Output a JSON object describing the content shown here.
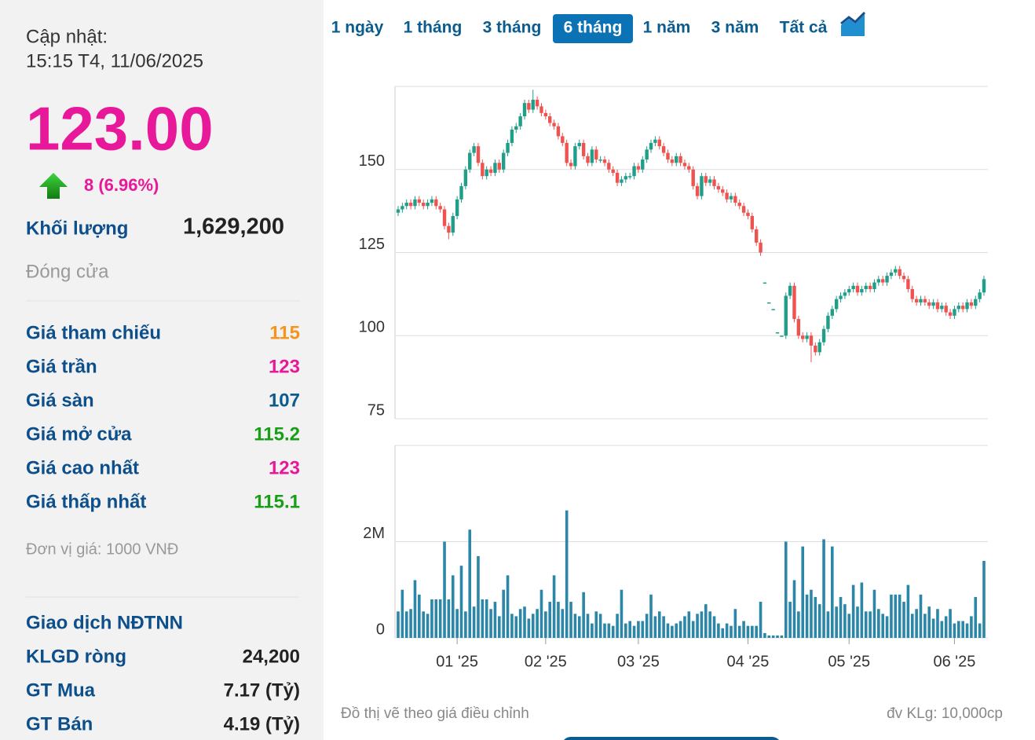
{
  "sidebar": {
    "update_label": "Cập nhật:",
    "update_time": "15:15 T4, 11/06/2025",
    "price": "123.00",
    "price_color": "#e8189a",
    "change": "8 (6.96%)",
    "volume_label": "Khối lượng",
    "volume": "1,629,200",
    "status": "Đóng cửa",
    "stats": [
      {
        "label": "Giá tham chiếu",
        "value": "115",
        "color": "#f7941d"
      },
      {
        "label": "Giá trần",
        "value": "123",
        "color": "#e8189a"
      },
      {
        "label": "Giá sàn",
        "value": "107",
        "color": "#0b5c8e"
      },
      {
        "label": "Giá mở cửa",
        "value": "115.2",
        "color": "#1a9e1a"
      },
      {
        "label": "Giá cao nhất",
        "value": "123",
        "color": "#e8189a"
      },
      {
        "label": "Giá thấp nhất",
        "value": "115.1",
        "color": "#1a9e1a"
      }
    ],
    "unit_note": "Đơn vị giá: 1000 VNĐ",
    "foreign": {
      "title": "Giao dịch NĐTNN",
      "rows": [
        {
          "label": "KLGD ròng",
          "value": "24,200"
        },
        {
          "label": "GT Mua",
          "value": "7.17 (Tỷ)"
        },
        {
          "label": "GT Bán",
          "value": "4.19 (Tỷ)"
        }
      ]
    }
  },
  "tabs": {
    "items": [
      "1 ngày",
      "1 tháng",
      "3 tháng",
      "6 tháng",
      "1 năm",
      "3 năm",
      "Tất cả"
    ],
    "active": 3
  },
  "footer": {
    "note": "Đồ thị vẽ theo giá điều chỉnh",
    "unit": "đv KLg: 10,000cp"
  },
  "chart_data": [
    {
      "type": "candlestick",
      "up_color": "#1f9e89",
      "down_color": "#ef5350",
      "grid": true,
      "ylim": [
        75,
        175
      ],
      "yticks": [
        75,
        100,
        125,
        150
      ],
      "open": [
        137,
        138,
        139,
        140,
        139,
        141,
        140,
        139,
        140,
        141,
        139,
        138,
        133,
        131,
        136,
        141,
        145,
        150,
        155,
        157,
        152,
        148,
        150,
        149,
        152,
        150,
        155,
        158,
        162,
        163,
        166,
        170,
        168,
        171,
        169,
        167,
        166,
        164,
        163,
        160,
        158,
        152,
        151,
        157,
        158,
        154,
        152,
        156,
        153,
        153,
        152,
        150,
        149,
        146,
        147,
        148,
        148,
        151,
        150,
        153,
        156,
        158,
        159,
        157,
        155,
        153,
        152,
        154,
        152,
        151,
        150,
        145,
        142,
        148,
        146,
        147,
        145,
        144,
        143,
        141,
        142,
        140,
        139,
        137,
        136,
        132,
        128,
        116,
        110,
        108,
        101,
        100,
        100,
        112,
        115,
        105,
        100,
        99,
        100,
        97,
        95,
        98,
        102,
        106,
        108,
        111,
        112,
        113,
        114,
        115,
        113,
        114,
        115,
        114,
        116,
        117,
        116,
        118,
        119,
        120,
        118,
        117,
        114,
        111,
        110,
        111,
        110,
        109,
        110,
        108,
        109,
        107,
        106,
        108,
        109,
        108,
        110,
        109,
        111,
        113
      ],
      "high": [
        139,
        140,
        141,
        141,
        142,
        142,
        141,
        141,
        142,
        142,
        140,
        139,
        134,
        137,
        142,
        146,
        151,
        156,
        158,
        158,
        153,
        151,
        151,
        153,
        153,
        156,
        159,
        163,
        164,
        167,
        171,
        171,
        174,
        172,
        170,
        168,
        167,
        165,
        164,
        161,
        159,
        153,
        158,
        159,
        159,
        155,
        157,
        157,
        154,
        154,
        153,
        151,
        150,
        148,
        149,
        149,
        152,
        152,
        154,
        157,
        159,
        160,
        160,
        158,
        156,
        154,
        155,
        155,
        153,
        152,
        151,
        146,
        149,
        149,
        148,
        148,
        146,
        145,
        144,
        143,
        143,
        141,
        140,
        138,
        137,
        133,
        129,
        116,
        110,
        108,
        101,
        100,
        113,
        116,
        116,
        106,
        101,
        101,
        101,
        98,
        99,
        103,
        107,
        109,
        112,
        113,
        114,
        115,
        116,
        116,
        115,
        116,
        116,
        117,
        118,
        118,
        119,
        120,
        121,
        121,
        119,
        118,
        115,
        112,
        112,
        112,
        111,
        111,
        111,
        110,
        110,
        108,
        109,
        110,
        110,
        111,
        111,
        112,
        114,
        118
      ],
      "low": [
        136,
        137,
        138,
        138,
        138,
        139,
        138,
        138,
        139,
        138,
        137,
        132,
        129,
        130,
        135,
        140,
        144,
        149,
        154,
        151,
        147,
        147,
        148,
        148,
        149,
        149,
        154,
        157,
        161,
        162,
        165,
        167,
        167,
        168,
        166,
        165,
        163,
        162,
        159,
        157,
        151,
        150,
        150,
        156,
        153,
        151,
        151,
        152,
        152,
        151,
        149,
        148,
        145,
        145,
        146,
        147,
        147,
        149,
        149,
        152,
        155,
        157,
        156,
        154,
        152,
        151,
        151,
        151,
        150,
        149,
        144,
        141,
        141,
        145,
        145,
        144,
        143,
        142,
        140,
        140,
        139,
        138,
        136,
        135,
        131,
        127,
        124,
        116,
        110,
        108,
        101,
        100,
        99,
        111,
        104,
        99,
        98,
        98,
        92,
        94,
        94,
        97,
        101,
        105,
        107,
        110,
        111,
        112,
        113,
        112,
        112,
        113,
        113,
        113,
        115,
        115,
        115,
        117,
        118,
        117,
        116,
        113,
        110,
        109,
        109,
        109,
        108,
        108,
        107,
        107,
        106,
        105,
        105,
        107,
        107,
        107,
        108,
        108,
        110,
        112
      ],
      "close": [
        138,
        139,
        140,
        139,
        141,
        140,
        139,
        140,
        141,
        139,
        138,
        133,
        131,
        136,
        141,
        145,
        150,
        155,
        157,
        152,
        148,
        150,
        149,
        152,
        150,
        155,
        158,
        162,
        163,
        166,
        170,
        168,
        171,
        169,
        167,
        166,
        164,
        163,
        160,
        158,
        152,
        151,
        157,
        158,
        154,
        152,
        156,
        153,
        153,
        152,
        150,
        149,
        146,
        147,
        148,
        148,
        151,
        150,
        153,
        156,
        158,
        159,
        157,
        155,
        153,
        152,
        154,
        152,
        151,
        150,
        145,
        142,
        148,
        146,
        147,
        145,
        144,
        143,
        141,
        142,
        140,
        139,
        137,
        136,
        132,
        128,
        125,
        116,
        110,
        108,
        101,
        100,
        112,
        115,
        105,
        100,
        99,
        100,
        97,
        95,
        98,
        102,
        106,
        108,
        111,
        112,
        113,
        114,
        115,
        113,
        114,
        115,
        114,
        116,
        117,
        116,
        118,
        119,
        120,
        118,
        117,
        114,
        111,
        110,
        111,
        110,
        109,
        110,
        108,
        109,
        107,
        106,
        108,
        109,
        108,
        110,
        109,
        111,
        113,
        117
      ]
    },
    {
      "type": "bar",
      "color": "#2b86a8",
      "grid": true,
      "ylim": [
        0,
        4
      ],
      "yticks": [
        0,
        {
          "value": 2,
          "label": "2M"
        }
      ],
      "xticks": [
        {
          "value": 14,
          "label": "01 '25"
        },
        {
          "value": 35,
          "label": "02 '25"
        },
        {
          "value": 57,
          "label": "03 '25"
        },
        {
          "value": 83,
          "label": "04 '25"
        },
        {
          "value": 107,
          "label": "05 '25"
        },
        {
          "value": 132,
          "label": "06 '25"
        }
      ],
      "values": [
        0.55,
        1.0,
        0.55,
        0.6,
        1.2,
        0.9,
        0.55,
        0.5,
        0.8,
        0.8,
        0.8,
        2.0,
        0.8,
        1.3,
        0.6,
        1.5,
        0.55,
        2.25,
        0.65,
        1.7,
        0.8,
        0.8,
        0.6,
        0.75,
        0.45,
        1.0,
        1.3,
        0.5,
        0.45,
        0.6,
        0.65,
        0.4,
        0.5,
        0.6,
        1.0,
        0.55,
        0.75,
        1.3,
        0.75,
        0.6,
        2.65,
        0.75,
        0.5,
        0.45,
        0.95,
        0.5,
        0.3,
        0.55,
        0.5,
        0.3,
        0.3,
        0.25,
        0.5,
        1.0,
        0.3,
        0.35,
        0.25,
        0.35,
        0.35,
        0.5,
        0.9,
        0.45,
        0.55,
        0.45,
        0.3,
        0.25,
        0.3,
        0.35,
        0.45,
        0.55,
        0.35,
        0.5,
        0.55,
        0.7,
        0.55,
        0.45,
        0.3,
        0.2,
        0.3,
        0.25,
        0.6,
        0.25,
        0.35,
        0.25,
        0.25,
        0.25,
        0.75,
        0.1,
        0.05,
        0.05,
        0.05,
        0.05,
        2.0,
        0.75,
        1.2,
        0.55,
        1.9,
        0.9,
        1.0,
        0.85,
        0.7,
        2.05,
        0.55,
        1.9,
        0.65,
        0.85,
        0.7,
        0.5,
        1.1,
        0.65,
        1.15,
        0.55,
        0.55,
        1.0,
        0.6,
        0.5,
        0.45,
        0.9,
        0.9,
        0.9,
        0.75,
        1.1,
        0.5,
        0.6,
        0.9,
        0.5,
        0.65,
        0.4,
        0.6,
        0.35,
        0.45,
        0.6,
        0.3,
        0.35,
        0.35,
        0.3,
        0.45,
        0.85,
        0.3,
        1.6
      ]
    }
  ]
}
